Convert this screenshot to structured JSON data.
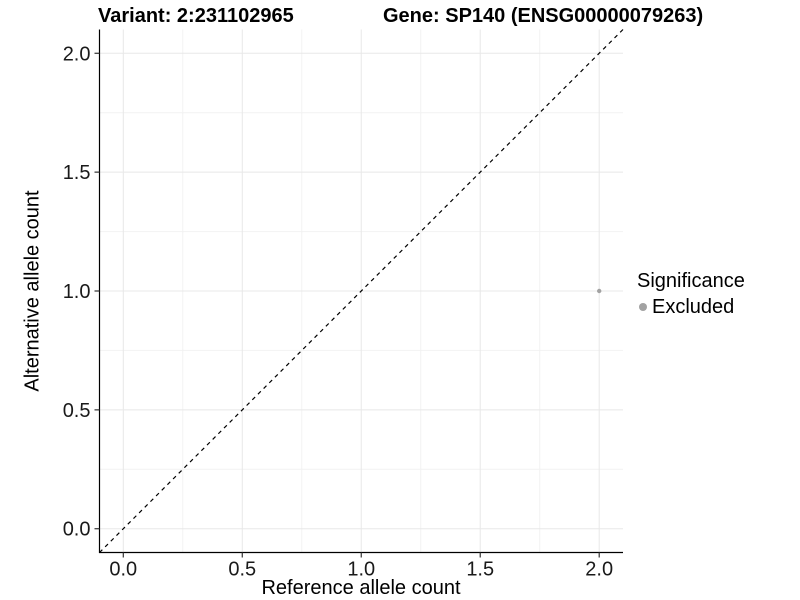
{
  "header": {
    "variant_title": "Variant: 2:231102965",
    "gene_title": "Gene: SP140 (ENSG00000079263)"
  },
  "chart_data": {
    "type": "scatter",
    "title_left": "Variant: 2:231102965",
    "title_right": "Gene: SP140 (ENSG00000079263)",
    "xlabel": "Reference allele count",
    "ylabel": "Alternative allele count",
    "xlim": [
      -0.1,
      2.1
    ],
    "ylim": [
      -0.1,
      2.1
    ],
    "xticks": [
      0.0,
      0.5,
      1.0,
      1.5,
      2.0
    ],
    "yticks": [
      0.0,
      0.5,
      1.0,
      1.5,
      2.0
    ],
    "xtick_labels": [
      "0.0",
      "0.5",
      "1.0",
      "1.5",
      "2.0"
    ],
    "ytick_labels": [
      "0.0",
      "0.5",
      "1.0",
      "1.5",
      "2.0"
    ],
    "minor_breaks": [
      0.25,
      0.75,
      1.25,
      1.75
    ],
    "grid": true,
    "identity_line": {
      "slope": 1,
      "intercept": 0,
      "style": "dashed",
      "color": "#000000"
    },
    "series": [
      {
        "name": "Excluded",
        "color": "#a2a2a2",
        "points": [
          {
            "x": 2.0,
            "y": 1.0
          }
        ]
      }
    ],
    "legend": {
      "title": "Significance",
      "position": "right",
      "items": [
        {
          "label": "Excluded",
          "color": "#a2a2a2"
        }
      ]
    },
    "colors": {
      "background": "#ffffff",
      "grid_major": "#e8e8e8",
      "grid_minor": "#f2f2f2",
      "axis_line": "#000000",
      "tick_mark": "#333333",
      "tick_label": "#1a1a1a",
      "text": "#000000"
    }
  }
}
